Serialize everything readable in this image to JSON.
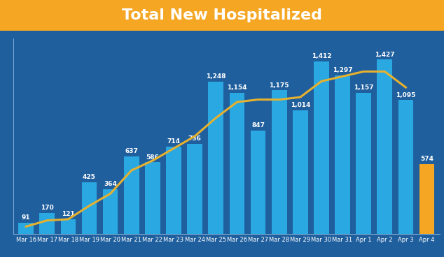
{
  "chart_data": {
    "type": "bar",
    "title": "Total New Hospitalized",
    "categories": [
      "Mar 16",
      "Mar 17",
      "Mar 18",
      "Mar 19",
      "Mar 20",
      "Mar 21",
      "Mar 22",
      "Mar 23",
      "Mar 24",
      "Mar 25",
      "Mar 26",
      "Mar 27",
      "Mar 28",
      "Mar 29",
      "Mar 30",
      "Mar 31",
      "Apr 1",
      "Apr 2",
      "Apr 3",
      "Apr 4"
    ],
    "series": [
      {
        "type": "bar",
        "values": [
          91,
          170,
          121,
          425,
          364,
          637,
          586,
          714,
          736,
          1248,
          1154,
          847,
          1175,
          1014,
          1412,
          1297,
          1157,
          1427,
          1095,
          574
        ],
        "value_labels": [
          "91",
          "170",
          "121",
          "425",
          "364",
          "637",
          "586",
          "714",
          "736",
          "1,248",
          "1,154",
          "847",
          "1,175",
          "1,014",
          "1,412",
          "1,297",
          "1,157",
          "1,427",
          "1,095",
          "574"
        ],
        "colors": [
          "#2aa8e2",
          "#2aa8e2",
          "#2aa8e2",
          "#2aa8e2",
          "#2aa8e2",
          "#2aa8e2",
          "#2aa8e2",
          "#2aa8e2",
          "#2aa8e2",
          "#2aa8e2",
          "#2aa8e2",
          "#2aa8e2",
          "#2aa8e2",
          "#2aa8e2",
          "#2aa8e2",
          "#2aa8e2",
          "#2aa8e2",
          "#2aa8e2",
          "#2aa8e2",
          "#f5a623"
        ]
      },
      {
        "type": "line",
        "color": "#e6b12e",
        "values": [
          60,
          110,
          120,
          230,
          330,
          520,
          600,
          700,
          800,
          950,
          1080,
          1100,
          1100,
          1120,
          1250,
          1290,
          1330,
          1330,
          1200,
          null
        ]
      }
    ],
    "data_labels": true,
    "tick_labels": "x",
    "ylim": [
      0,
      1600
    ]
  }
}
